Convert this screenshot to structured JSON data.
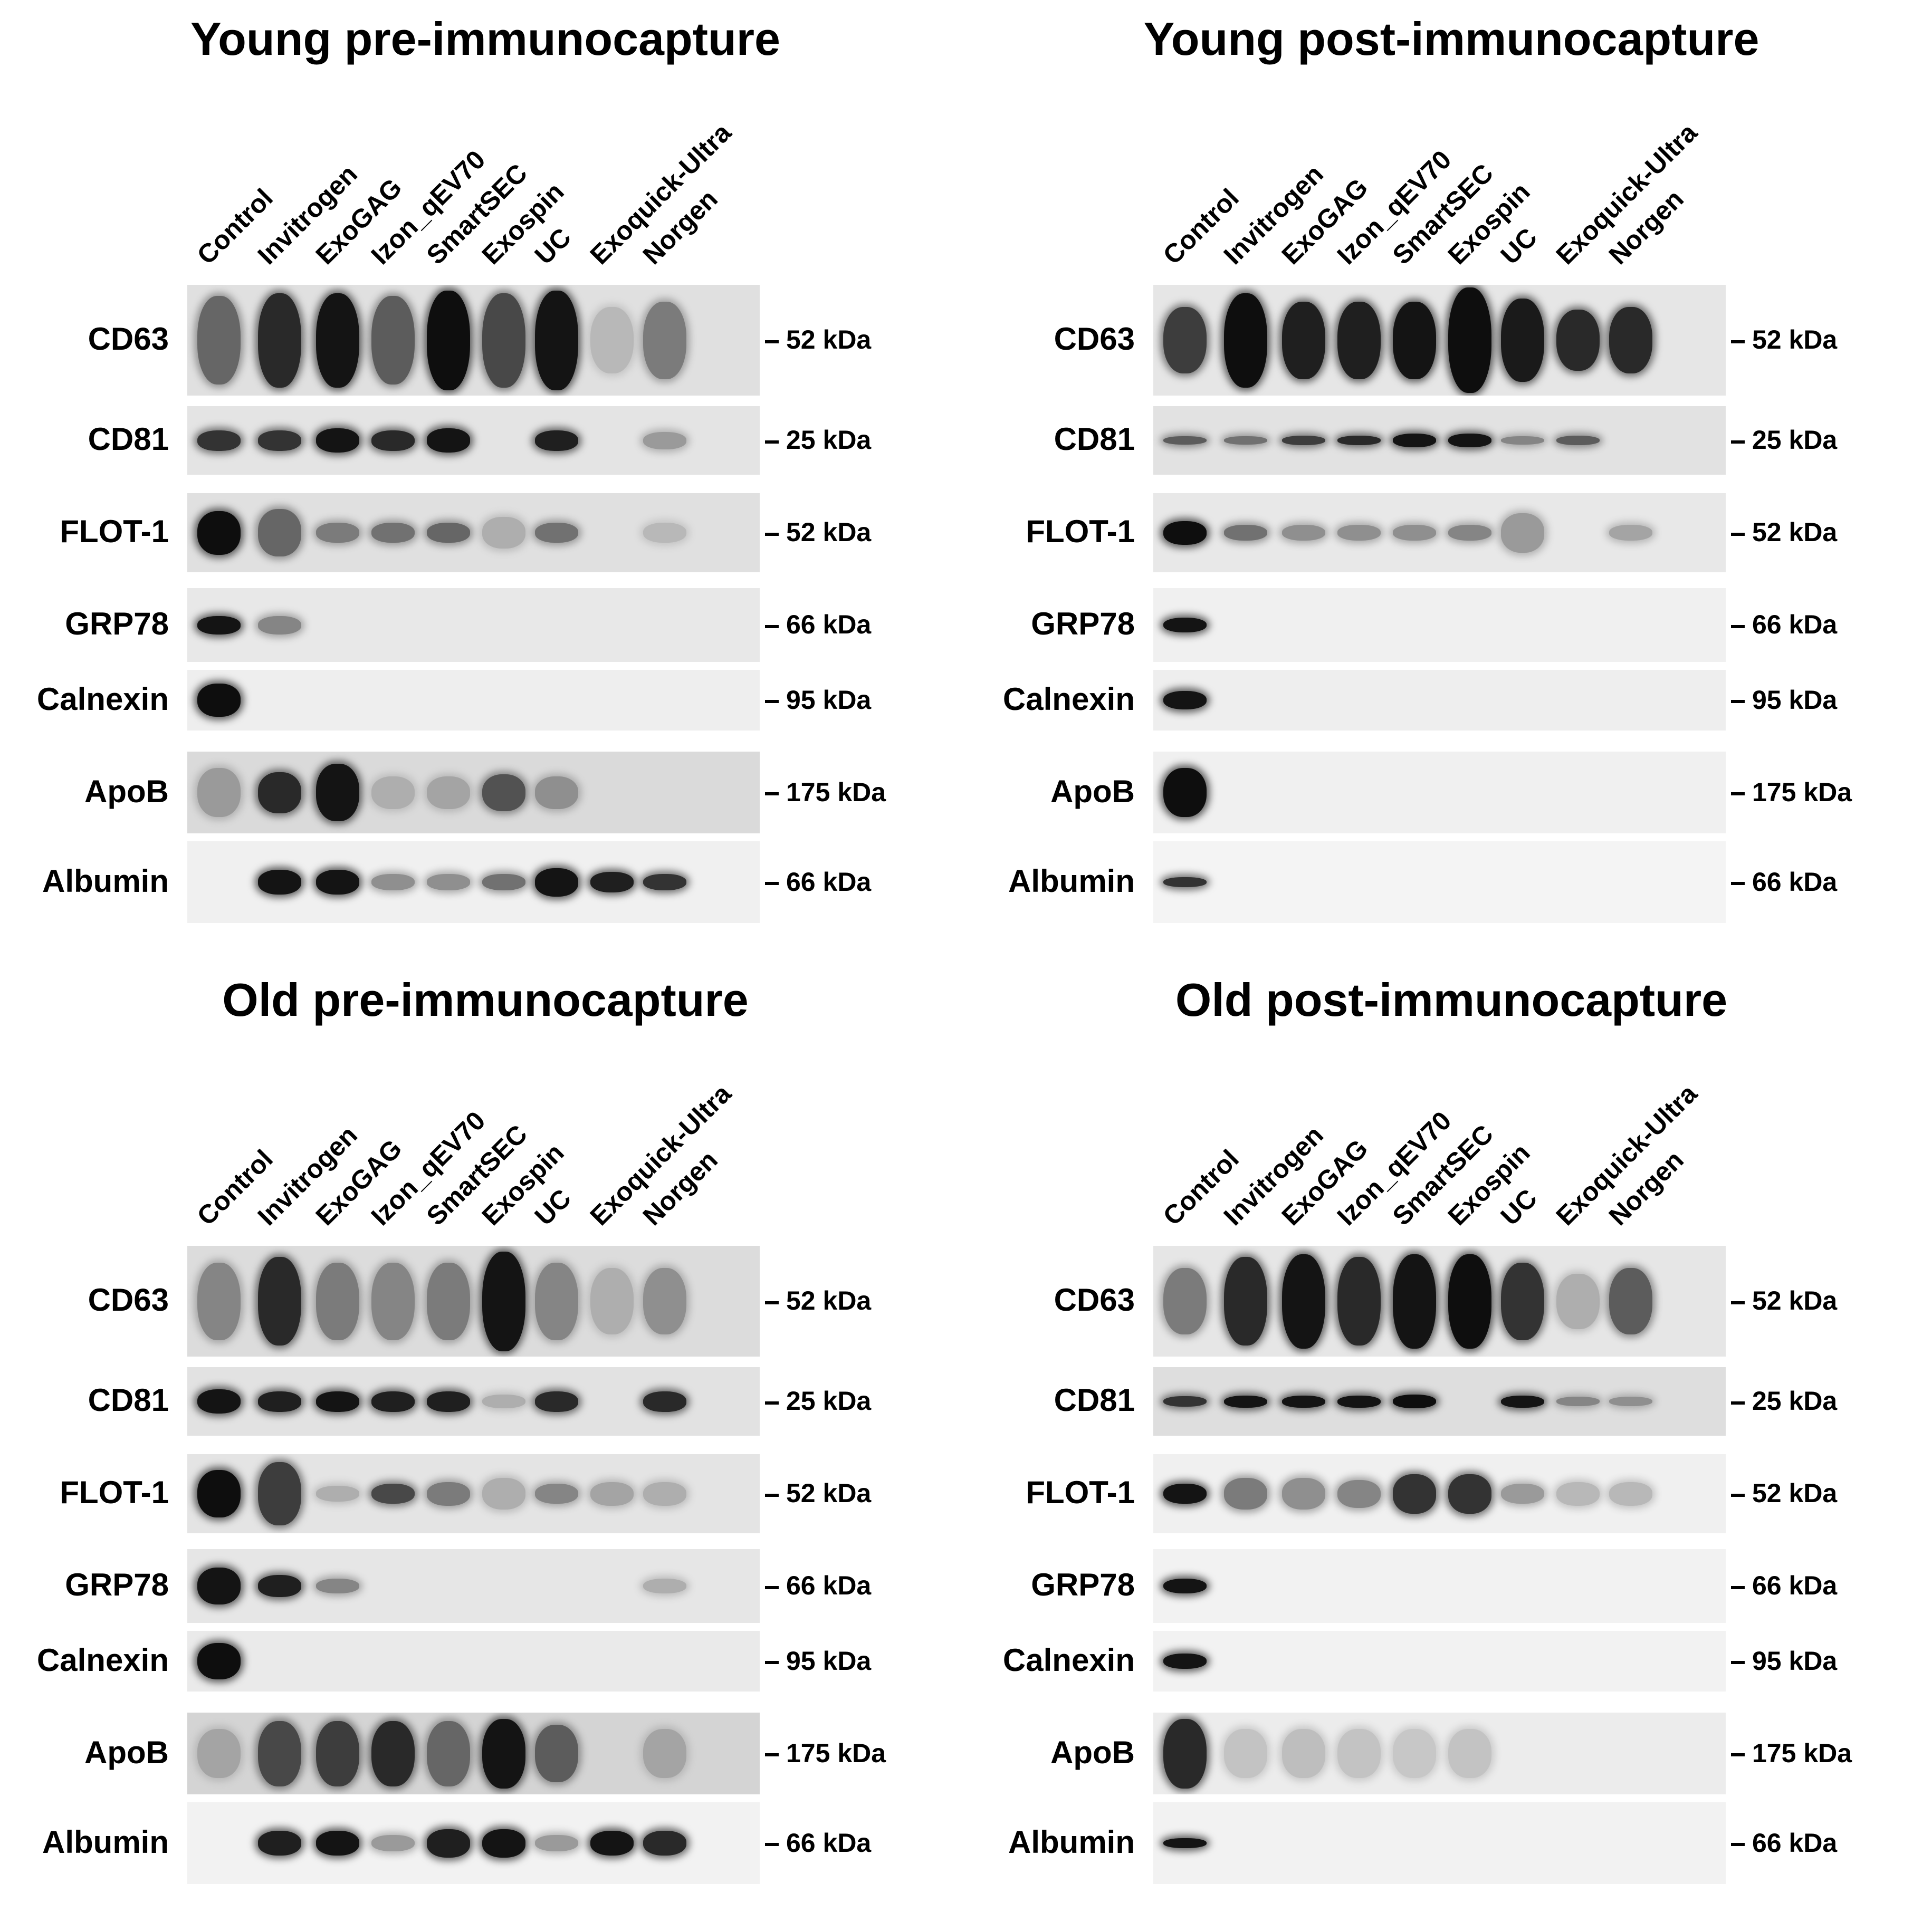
{
  "lanes": [
    "Control",
    "Invitrogen",
    "ExoGAG",
    "Izon_qEV70",
    "SmartSEC",
    "Exospin",
    "UC",
    "Exoquick-Ultra",
    "Norgen"
  ],
  "panels": [
    {
      "id": "young-pre",
      "title": "Young pre-immunocapture",
      "blots": [
        {
          "label": "CD63",
          "mw": "52 kDa",
          "bg": "#e0e0e0",
          "bands": [
            {
              "lane": 0,
              "i": 0.55,
              "h": 0.8
            },
            {
              "lane": 1,
              "i": 0.85,
              "h": 0.85
            },
            {
              "lane": 2,
              "i": 0.95,
              "h": 0.85
            },
            {
              "lane": 3,
              "i": 0.6,
              "h": 0.8
            },
            {
              "lane": 4,
              "i": 0.98,
              "h": 0.9
            },
            {
              "lane": 5,
              "i": 0.7,
              "h": 0.85
            },
            {
              "lane": 6,
              "i": 0.95,
              "h": 0.9
            },
            {
              "lane": 7,
              "i": 0.15,
              "h": 0.6
            },
            {
              "lane": 8,
              "i": 0.45,
              "h": 0.7
            }
          ]
        },
        {
          "label": "CD81",
          "mw": "25 kDa",
          "bg": "#e4e4e4",
          "bands": [
            {
              "lane": 0,
              "i": 0.8,
              "h": 0.3
            },
            {
              "lane": 1,
              "i": 0.8,
              "h": 0.3
            },
            {
              "lane": 2,
              "i": 0.95,
              "h": 0.35
            },
            {
              "lane": 3,
              "i": 0.85,
              "h": 0.3
            },
            {
              "lane": 4,
              "i": 0.95,
              "h": 0.35
            },
            {
              "lane": 6,
              "i": 0.9,
              "h": 0.3
            },
            {
              "lane": 8,
              "i": 0.3,
              "h": 0.25
            }
          ]
        },
        {
          "label": "FLOT-1",
          "mw": "52 kDa",
          "bg": "#e0e0e0",
          "bands": [
            {
              "lane": 0,
              "i": 0.98,
              "h": 0.55
            },
            {
              "lane": 1,
              "i": 0.55,
              "h": 0.6
            },
            {
              "lane": 2,
              "i": 0.45,
              "h": 0.25
            },
            {
              "lane": 3,
              "i": 0.5,
              "h": 0.25
            },
            {
              "lane": 4,
              "i": 0.55,
              "h": 0.25
            },
            {
              "lane": 5,
              "i": 0.2,
              "h": 0.4
            },
            {
              "lane": 6,
              "i": 0.5,
              "h": 0.25
            },
            {
              "lane": 8,
              "i": 0.15,
              "h": 0.25
            }
          ]
        },
        {
          "label": "GRP78",
          "mw": "66 kDa",
          "bg": "#e8e8e8",
          "bands": [
            {
              "lane": 0,
              "i": 0.95,
              "h": 0.25
            },
            {
              "lane": 1,
              "i": 0.4,
              "h": 0.25
            }
          ]
        },
        {
          "label": "Calnexin",
          "mw": "95 kDa",
          "bg": "#eeeeee",
          "bands": [
            {
              "lane": 0,
              "i": 0.98,
              "h": 0.55
            }
          ]
        },
        {
          "label": "ApoB",
          "mw": "175 kDa",
          "bg": "#dadada",
          "bands": [
            {
              "lane": 0,
              "i": 0.3,
              "h": 0.6
            },
            {
              "lane": 1,
              "i": 0.85,
              "h": 0.5
            },
            {
              "lane": 2,
              "i": 0.95,
              "h": 0.7
            },
            {
              "lane": 3,
              "i": 0.2,
              "h": 0.4
            },
            {
              "lane": 4,
              "i": 0.25,
              "h": 0.4
            },
            {
              "lane": 5,
              "i": 0.65,
              "h": 0.45
            },
            {
              "lane": 6,
              "i": 0.35,
              "h": 0.4
            }
          ]
        },
        {
          "label": "Albumin",
          "mw": "66 kDa",
          "bg": "#f0f0f0",
          "bands": [
            {
              "lane": 1,
              "i": 0.95,
              "h": 0.3
            },
            {
              "lane": 2,
              "i": 0.95,
              "h": 0.3
            },
            {
              "lane": 3,
              "i": 0.35,
              "h": 0.2
            },
            {
              "lane": 4,
              "i": 0.35,
              "h": 0.2
            },
            {
              "lane": 5,
              "i": 0.5,
              "h": 0.2
            },
            {
              "lane": 6,
              "i": 0.95,
              "h": 0.35
            },
            {
              "lane": 7,
              "i": 0.9,
              "h": 0.25
            },
            {
              "lane": 8,
              "i": 0.8,
              "h": 0.2
            }
          ]
        }
      ]
    },
    {
      "id": "young-post",
      "title": "Young post-immunocapture",
      "blots": [
        {
          "label": "CD63",
          "mw": "52 kDa",
          "bg": "#e6e6e6",
          "bands": [
            {
              "lane": 0,
              "i": 0.75,
              "h": 0.6
            },
            {
              "lane": 1,
              "i": 0.98,
              "h": 0.85
            },
            {
              "lane": 2,
              "i": 0.9,
              "h": 0.7
            },
            {
              "lane": 3,
              "i": 0.9,
              "h": 0.7
            },
            {
              "lane": 4,
              "i": 0.95,
              "h": 0.7
            },
            {
              "lane": 5,
              "i": 0.98,
              "h": 0.95
            },
            {
              "lane": 6,
              "i": 0.92,
              "h": 0.75
            },
            {
              "lane": 7,
              "i": 0.85,
              "h": 0.55
            },
            {
              "lane": 8,
              "i": 0.85,
              "h": 0.6
            }
          ]
        },
        {
          "label": "CD81",
          "mw": "25 kDa",
          "bg": "#e2e2e2",
          "bands": [
            {
              "lane": 0,
              "i": 0.6,
              "h": 0.12
            },
            {
              "lane": 1,
              "i": 0.5,
              "h": 0.12
            },
            {
              "lane": 2,
              "i": 0.75,
              "h": 0.14
            },
            {
              "lane": 3,
              "i": 0.85,
              "h": 0.14
            },
            {
              "lane": 4,
              "i": 0.95,
              "h": 0.2
            },
            {
              "lane": 5,
              "i": 0.95,
              "h": 0.2
            },
            {
              "lane": 6,
              "i": 0.4,
              "h": 0.12
            },
            {
              "lane": 7,
              "i": 0.6,
              "h": 0.14
            }
          ]
        },
        {
          "label": "FLOT-1",
          "mw": "52 kDa",
          "bg": "#e8e8e8",
          "bands": [
            {
              "lane": 0,
              "i": 0.98,
              "h": 0.3
            },
            {
              "lane": 1,
              "i": 0.5,
              "h": 0.2
            },
            {
              "lane": 2,
              "i": 0.35,
              "h": 0.2
            },
            {
              "lane": 3,
              "i": 0.35,
              "h": 0.2
            },
            {
              "lane": 4,
              "i": 0.35,
              "h": 0.2
            },
            {
              "lane": 5,
              "i": 0.4,
              "h": 0.2
            },
            {
              "lane": 6,
              "i": 0.3,
              "h": 0.5
            },
            {
              "lane": 8,
              "i": 0.25,
              "h": 0.2
            }
          ]
        },
        {
          "label": "GRP78",
          "mw": "66 kDa",
          "bg": "#f0f0f0",
          "bands": [
            {
              "lane": 0,
              "i": 0.95,
              "h": 0.2
            }
          ]
        },
        {
          "label": "Calnexin",
          "mw": "95 kDa",
          "bg": "#eeeeee",
          "bands": [
            {
              "lane": 0,
              "i": 0.95,
              "h": 0.3
            }
          ]
        },
        {
          "label": "ApoB",
          "mw": "175 kDa",
          "bg": "#f0f0f0",
          "bands": [
            {
              "lane": 0,
              "i": 0.98,
              "h": 0.6
            }
          ]
        },
        {
          "label": "Albumin",
          "mw": "66 kDa",
          "bg": "#f4f4f4",
          "bands": [
            {
              "lane": 0,
              "i": 0.8,
              "h": 0.12
            }
          ]
        }
      ]
    },
    {
      "id": "old-pre",
      "title": "Old pre-immunocapture",
      "blots": [
        {
          "label": "CD63",
          "mw": "52 kDa",
          "bg": "#dcdcdc",
          "bands": [
            {
              "lane": 0,
              "i": 0.4,
              "h": 0.7
            },
            {
              "lane": 1,
              "i": 0.85,
              "h": 0.8
            },
            {
              "lane": 2,
              "i": 0.45,
              "h": 0.7
            },
            {
              "lane": 3,
              "i": 0.4,
              "h": 0.7
            },
            {
              "lane": 4,
              "i": 0.45,
              "h": 0.7
            },
            {
              "lane": 5,
              "i": 0.95,
              "h": 0.9
            },
            {
              "lane": 6,
              "i": 0.4,
              "h": 0.7
            },
            {
              "lane": 7,
              "i": 0.2,
              "h": 0.6
            },
            {
              "lane": 8,
              "i": 0.35,
              "h": 0.6
            }
          ]
        },
        {
          "label": "CD81",
          "mw": "25 kDa",
          "bg": "#e2e2e2",
          "bands": [
            {
              "lane": 0,
              "i": 0.95,
              "h": 0.35
            },
            {
              "lane": 1,
              "i": 0.9,
              "h": 0.3
            },
            {
              "lane": 2,
              "i": 0.95,
              "h": 0.3
            },
            {
              "lane": 3,
              "i": 0.9,
              "h": 0.3
            },
            {
              "lane": 4,
              "i": 0.9,
              "h": 0.3
            },
            {
              "lane": 5,
              "i": 0.2,
              "h": 0.2
            },
            {
              "lane": 6,
              "i": 0.85,
              "h": 0.3
            },
            {
              "lane": 8,
              "i": 0.85,
              "h": 0.3
            }
          ]
        },
        {
          "label": "FLOT-1",
          "mw": "52 kDa",
          "bg": "#e4e4e4",
          "bands": [
            {
              "lane": 0,
              "i": 0.98,
              "h": 0.6
            },
            {
              "lane": 1,
              "i": 0.75,
              "h": 0.8
            },
            {
              "lane": 2,
              "i": 0.2,
              "h": 0.2
            },
            {
              "lane": 3,
              "i": 0.7,
              "h": 0.25
            },
            {
              "lane": 4,
              "i": 0.45,
              "h": 0.3
            },
            {
              "lane": 5,
              "i": 0.2,
              "h": 0.4
            },
            {
              "lane": 6,
              "i": 0.4,
              "h": 0.25
            },
            {
              "lane": 7,
              "i": 0.25,
              "h": 0.3
            },
            {
              "lane": 8,
              "i": 0.2,
              "h": 0.3
            }
          ]
        },
        {
          "label": "GRP78",
          "mw": "66 kDa",
          "bg": "#e6e6e6",
          "bands": [
            {
              "lane": 0,
              "i": 0.95,
              "h": 0.5
            },
            {
              "lane": 1,
              "i": 0.9,
              "h": 0.3
            },
            {
              "lane": 2,
              "i": 0.4,
              "h": 0.2
            },
            {
              "lane": 8,
              "i": 0.2,
              "h": 0.2
            }
          ]
        },
        {
          "label": "Calnexin",
          "mw": "95 kDa",
          "bg": "#eaeaea",
          "bands": [
            {
              "lane": 0,
              "i": 0.98,
              "h": 0.6
            }
          ]
        },
        {
          "label": "ApoB",
          "mw": "175 kDa",
          "bg": "#d4d4d4",
          "bands": [
            {
              "lane": 0,
              "i": 0.25,
              "h": 0.6
            },
            {
              "lane": 1,
              "i": 0.7,
              "h": 0.8
            },
            {
              "lane": 2,
              "i": 0.75,
              "h": 0.8
            },
            {
              "lane": 3,
              "i": 0.85,
              "h": 0.8
            },
            {
              "lane": 4,
              "i": 0.55,
              "h": 0.8
            },
            {
              "lane": 5,
              "i": 0.95,
              "h": 0.85
            },
            {
              "lane": 6,
              "i": 0.6,
              "h": 0.7
            },
            {
              "lane": 8,
              "i": 0.25,
              "h": 0.6
            }
          ]
        },
        {
          "label": "Albumin",
          "mw": "66 kDa",
          "bg": "#f2f2f2",
          "bands": [
            {
              "lane": 1,
              "i": 0.9,
              "h": 0.3
            },
            {
              "lane": 2,
              "i": 0.95,
              "h": 0.3
            },
            {
              "lane": 3,
              "i": 0.3,
              "h": 0.2
            },
            {
              "lane": 4,
              "i": 0.9,
              "h": 0.35
            },
            {
              "lane": 5,
              "i": 0.95,
              "h": 0.35
            },
            {
              "lane": 6,
              "i": 0.3,
              "h": 0.2
            },
            {
              "lane": 7,
              "i": 0.95,
              "h": 0.3
            },
            {
              "lane": 8,
              "i": 0.85,
              "h": 0.3
            }
          ]
        }
      ]
    },
    {
      "id": "old-post",
      "title": "Old post-immunocapture",
      "blots": [
        {
          "label": "CD63",
          "mw": "52 kDa",
          "bg": "#e6e6e6",
          "bands": [
            {
              "lane": 0,
              "i": 0.45,
              "h": 0.6
            },
            {
              "lane": 1,
              "i": 0.85,
              "h": 0.8
            },
            {
              "lane": 2,
              "i": 0.95,
              "h": 0.85
            },
            {
              "lane": 3,
              "i": 0.85,
              "h": 0.8
            },
            {
              "lane": 4,
              "i": 0.95,
              "h": 0.85
            },
            {
              "lane": 5,
              "i": 0.98,
              "h": 0.85
            },
            {
              "lane": 6,
              "i": 0.8,
              "h": 0.7
            },
            {
              "lane": 7,
              "i": 0.2,
              "h": 0.5
            },
            {
              "lane": 8,
              "i": 0.6,
              "h": 0.6
            }
          ]
        },
        {
          "label": "CD81",
          "mw": "25 kDa",
          "bg": "#dedede",
          "bands": [
            {
              "lane": 0,
              "i": 0.8,
              "h": 0.15
            },
            {
              "lane": 1,
              "i": 0.95,
              "h": 0.18
            },
            {
              "lane": 2,
              "i": 0.95,
              "h": 0.18
            },
            {
              "lane": 3,
              "i": 0.95,
              "h": 0.18
            },
            {
              "lane": 4,
              "i": 0.98,
              "h": 0.2
            },
            {
              "lane": 6,
              "i": 0.95,
              "h": 0.18
            },
            {
              "lane": 7,
              "i": 0.4,
              "h": 0.14
            },
            {
              "lane": 8,
              "i": 0.35,
              "h": 0.14
            }
          ]
        },
        {
          "label": "FLOT-1",
          "mw": "52 kDa",
          "bg": "#f0f0f0",
          "bands": [
            {
              "lane": 0,
              "i": 0.95,
              "h": 0.25
            },
            {
              "lane": 1,
              "i": 0.45,
              "h": 0.4
            },
            {
              "lane": 2,
              "i": 0.35,
              "h": 0.4
            },
            {
              "lane": 3,
              "i": 0.4,
              "h": 0.35
            },
            {
              "lane": 4,
              "i": 0.8,
              "h": 0.5
            },
            {
              "lane": 5,
              "i": 0.8,
              "h": 0.5
            },
            {
              "lane": 6,
              "i": 0.3,
              "h": 0.25
            },
            {
              "lane": 7,
              "i": 0.15,
              "h": 0.3
            },
            {
              "lane": 8,
              "i": 0.15,
              "h": 0.3
            }
          ]
        },
        {
          "label": "GRP78",
          "mw": "66 kDa",
          "bg": "#f2f2f2",
          "bands": [
            {
              "lane": 0,
              "i": 0.95,
              "h": 0.2
            }
          ]
        },
        {
          "label": "Calnexin",
          "mw": "95 kDa",
          "bg": "#f2f2f2",
          "bands": [
            {
              "lane": 0,
              "i": 0.95,
              "h": 0.25
            }
          ]
        },
        {
          "label": "ApoB",
          "mw": "175 kDa",
          "bg": "#ececec",
          "bands": [
            {
              "lane": 0,
              "i": 0.85,
              "h": 0.85
            },
            {
              "lane": 1,
              "i": 0.1,
              "h": 0.6
            },
            {
              "lane": 2,
              "i": 0.12,
              "h": 0.6
            },
            {
              "lane": 3,
              "i": 0.1,
              "h": 0.6
            },
            {
              "lane": 4,
              "i": 0.08,
              "h": 0.6
            },
            {
              "lane": 5,
              "i": 0.1,
              "h": 0.6
            }
          ]
        },
        {
          "label": "Albumin",
          "mw": "66 kDa",
          "bg": "#f2f2f2",
          "bands": [
            {
              "lane": 0,
              "i": 0.95,
              "h": 0.12
            }
          ]
        }
      ]
    }
  ]
}
